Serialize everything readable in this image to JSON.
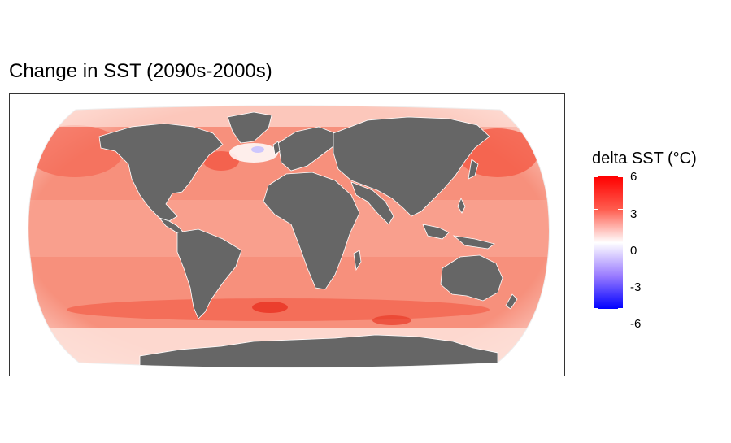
{
  "title": "Change in SST (2090s-2000s)",
  "legend": {
    "title": "delta SST (°C)",
    "range": [
      -6,
      6
    ],
    "ticks": [
      {
        "value": 6,
        "label": "6"
      },
      {
        "value": 3,
        "label": "3"
      },
      {
        "value": 0,
        "label": "0"
      },
      {
        "value": -3,
        "label": "-3"
      },
      {
        "value": -6,
        "label": "-6"
      }
    ],
    "colors": {
      "low": "#0000ff",
      "mid": "#ffffff",
      "high": "#ff0000"
    }
  },
  "map": {
    "projection": "robinson",
    "variable": "delta SST",
    "land_color": "#666666",
    "ocean_dominant_color": "#f98b77",
    "warm_hotspots": [
      "North Pacific",
      "Southern Ocean",
      "Northwest Atlantic"
    ],
    "cool_spot": "North Atlantic"
  }
}
